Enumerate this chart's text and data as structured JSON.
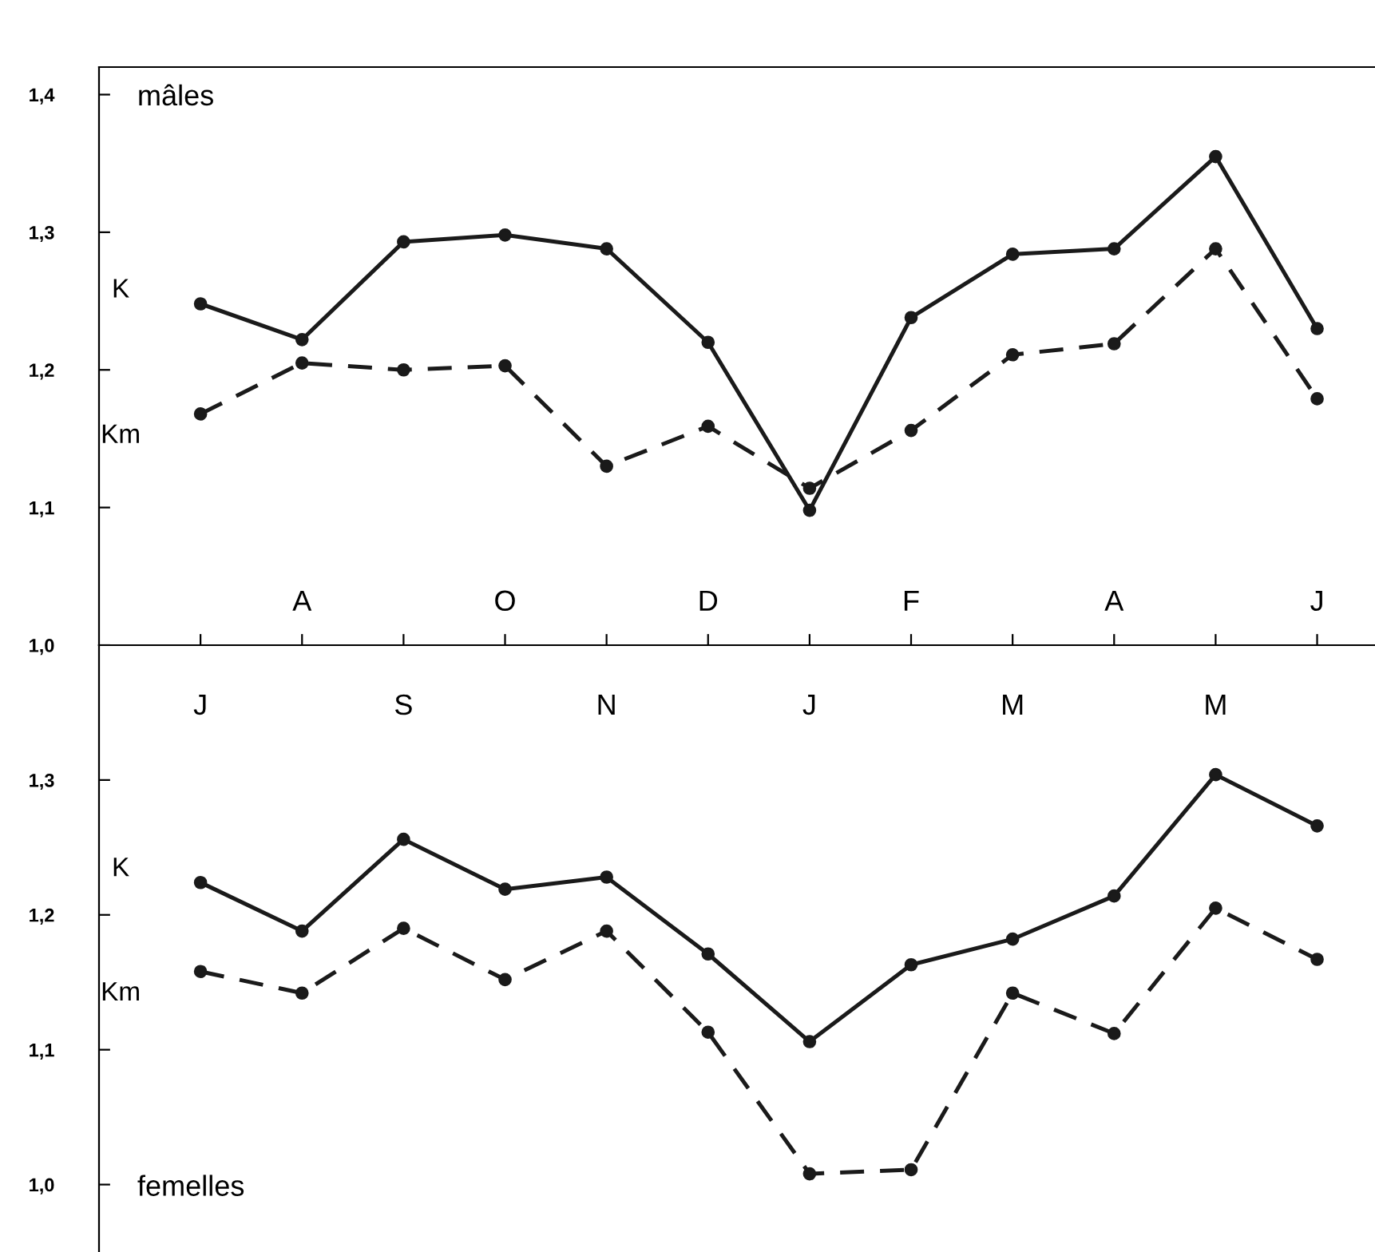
{
  "chart_data": [
    {
      "type": "line",
      "title": "mâles",
      "categories": [
        null,
        "A",
        null,
        "O",
        null,
        "D",
        null,
        "F",
        null,
        "A",
        null,
        "J"
      ],
      "series": [
        {
          "name": "K",
          "color": "#1a1a1a",
          "line_style": "solid",
          "values": [
            1.248,
            1.222,
            1.293,
            1.298,
            1.288,
            1.22,
            1.098,
            1.238,
            1.284,
            1.288,
            1.355,
            1.23
          ]
        },
        {
          "name": "Km",
          "color": "#1a1a1a",
          "line_style": "dashed",
          "values": [
            1.168,
            1.205,
            1.2,
            1.203,
            1.13,
            1.159,
            1.114,
            1.156,
            1.211,
            1.219,
            1.288,
            1.179
          ]
        }
      ],
      "ylim": [
        1.0,
        1.42
      ],
      "yticks": [
        {
          "value": 1.0,
          "label": "1,0"
        },
        {
          "value": 1.1,
          "label": "1,1"
        },
        {
          "value": 1.2,
          "label": "1,2"
        },
        {
          "value": 1.3,
          "label": "1,3"
        },
        {
          "value": 1.4,
          "label": "1,4"
        }
      ],
      "marker": "circle",
      "grid": false,
      "legend": false
    },
    {
      "type": "line",
      "title": "femelles",
      "categories": [
        "J",
        null,
        "S",
        null,
        "N",
        null,
        "J",
        null,
        "M",
        null,
        "M",
        null
      ],
      "series": [
        {
          "name": "K",
          "color": "#1a1a1a",
          "line_style": "solid",
          "values": [
            1.224,
            1.188,
            1.256,
            1.219,
            1.228,
            1.171,
            1.106,
            1.163,
            1.182,
            1.214,
            1.304,
            1.266
          ]
        },
        {
          "name": "Km",
          "color": "#1a1a1a",
          "line_style": "dashed",
          "values": [
            1.158,
            1.142,
            1.19,
            1.152,
            1.188,
            1.113,
            1.008,
            1.011,
            1.142,
            1.112,
            1.205,
            1.167
          ]
        }
      ],
      "ylim": [
        0.95,
        1.4
      ],
      "yticks": [
        {
          "value": 1.0,
          "label": "1,0"
        },
        {
          "value": 1.1,
          "label": "1,1"
        },
        {
          "value": 1.2,
          "label": "1,2"
        },
        {
          "value": 1.3,
          "label": "1,3"
        }
      ],
      "marker": "circle",
      "grid": false,
      "legend": false
    }
  ]
}
